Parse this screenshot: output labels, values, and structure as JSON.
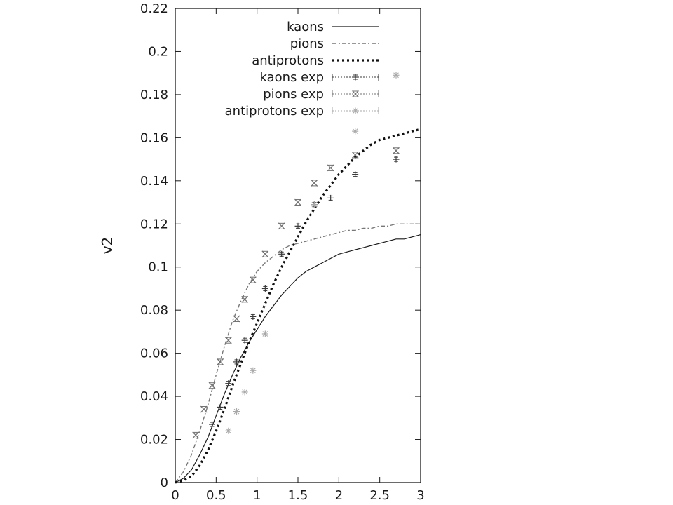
{
  "chart_data": {
    "type": "line",
    "title": "",
    "xlabel": "",
    "ylabel": "v2",
    "xlim": [
      0,
      3
    ],
    "ylim": [
      0,
      0.22
    ],
    "xticks": [
      0,
      0.5,
      1,
      1.5,
      2,
      2.5,
      3
    ],
    "xtick_labels": [
      "0",
      "0.5",
      "1",
      "1.5",
      "2",
      "2.5",
      "3"
    ],
    "yticks": [
      0,
      0.02,
      0.04,
      0.06,
      0.08,
      0.1,
      0.12,
      0.14,
      0.16,
      0.18,
      0.2,
      0.22
    ],
    "ytick_labels": [
      "0",
      "0.02",
      "0.04",
      "0.06",
      "0.08",
      "0.1",
      "0.12",
      "0.14",
      "0.16",
      "0.18",
      "0.2",
      "0.22"
    ],
    "grid": false,
    "legend_position": "top-right",
    "series": [
      {
        "name": "kaons",
        "kind": "line",
        "style": "solid",
        "color": "#1a1a1a",
        "x": [
          0,
          0.1,
          0.2,
          0.3,
          0.4,
          0.5,
          0.6,
          0.7,
          0.8,
          0.9,
          1.0,
          1.1,
          1.2,
          1.3,
          1.4,
          1.5,
          1.6,
          1.7,
          1.8,
          1.9,
          2.0,
          2.1,
          2.2,
          2.3,
          2.4,
          2.5,
          2.6,
          2.7,
          2.8,
          2.9,
          3.0
        ],
        "y": [
          0,
          0.002,
          0.006,
          0.013,
          0.021,
          0.031,
          0.041,
          0.05,
          0.058,
          0.065,
          0.071,
          0.077,
          0.082,
          0.087,
          0.091,
          0.095,
          0.098,
          0.1,
          0.102,
          0.104,
          0.106,
          0.107,
          0.108,
          0.109,
          0.11,
          0.111,
          0.112,
          0.113,
          0.113,
          0.114,
          0.115
        ]
      },
      {
        "name": "pions",
        "kind": "line",
        "style": "dashed",
        "color": "#777777",
        "x": [
          0,
          0.1,
          0.2,
          0.3,
          0.4,
          0.5,
          0.6,
          0.7,
          0.8,
          0.9,
          1.0,
          1.1,
          1.2,
          1.3,
          1.4,
          1.5,
          1.6,
          1.7,
          1.8,
          1.9,
          2.0,
          2.1,
          2.2,
          2.3,
          2.4,
          2.5,
          2.6,
          2.7,
          2.8,
          2.9,
          3.0
        ],
        "y": [
          0,
          0.005,
          0.013,
          0.024,
          0.036,
          0.05,
          0.063,
          0.075,
          0.084,
          0.092,
          0.098,
          0.102,
          0.105,
          0.108,
          0.11,
          0.111,
          0.112,
          0.113,
          0.114,
          0.115,
          0.116,
          0.117,
          0.117,
          0.118,
          0.118,
          0.119,
          0.119,
          0.12,
          0.12,
          0.12,
          0.12
        ]
      },
      {
        "name": "antiprotons",
        "kind": "line",
        "style": "dotted",
        "color": "#111111",
        "x": [
          0,
          0.1,
          0.2,
          0.3,
          0.4,
          0.5,
          0.6,
          0.7,
          0.8,
          0.9,
          1.0,
          1.1,
          1.2,
          1.3,
          1.4,
          1.5,
          1.6,
          1.7,
          1.8,
          1.9,
          2.0,
          2.1,
          2.2,
          2.3,
          2.4,
          2.5,
          2.6,
          2.7,
          2.8,
          2.9,
          3.0
        ],
        "y": [
          0,
          0.001,
          0.003,
          0.008,
          0.015,
          0.024,
          0.034,
          0.045,
          0.055,
          0.065,
          0.074,
          0.083,
          0.092,
          0.1,
          0.107,
          0.114,
          0.121,
          0.127,
          0.133,
          0.138,
          0.143,
          0.147,
          0.151,
          0.154,
          0.157,
          0.159,
          0.16,
          0.161,
          0.162,
          0.163,
          0.164
        ]
      },
      {
        "name": "kaons exp",
        "kind": "points",
        "marker": "plus",
        "color": "#3a3a3a",
        "x": [
          0.45,
          0.55,
          0.65,
          0.75,
          0.85,
          0.95,
          1.1,
          1.3,
          1.5,
          1.7,
          1.9,
          2.2,
          2.7
        ],
        "y": [
          0.027,
          0.035,
          0.046,
          0.056,
          0.066,
          0.077,
          0.09,
          0.106,
          0.119,
          0.129,
          0.132,
          0.143,
          0.15
        ]
      },
      {
        "name": "pions exp",
        "kind": "points",
        "marker": "cross",
        "color": "#707070",
        "x": [
          0.25,
          0.35,
          0.45,
          0.55,
          0.65,
          0.75,
          0.85,
          0.95,
          1.1,
          1.3,
          1.5,
          1.7,
          1.9,
          2.2,
          2.7
        ],
        "y": [
          0.022,
          0.034,
          0.045,
          0.056,
          0.066,
          0.076,
          0.085,
          0.094,
          0.106,
          0.119,
          0.13,
          0.139,
          0.146,
          0.152,
          0.154
        ]
      },
      {
        "name": "antiprotons exp",
        "kind": "points",
        "marker": "star",
        "color": "#a8a8a8",
        "x": [
          0.65,
          0.75,
          0.85,
          0.95,
          1.1,
          1.7,
          2.2,
          2.7
        ],
        "y": [
          0.024,
          0.033,
          0.042,
          0.052,
          0.069,
          0.129,
          0.163,
          0.189
        ]
      }
    ]
  }
}
